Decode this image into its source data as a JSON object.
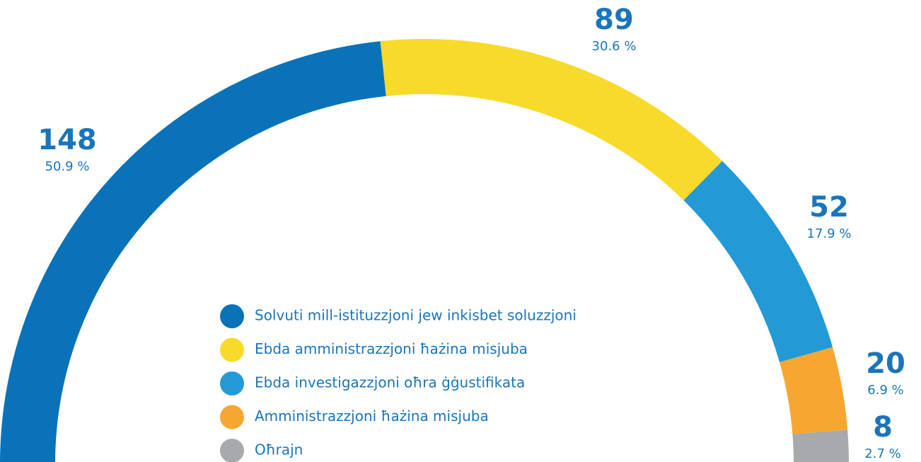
{
  "chart_data": {
    "type": "half-donut",
    "categories": [
      "Solvuti mill-istituzzjoni jew inkisbet soluzzjoni",
      "Ebda amministrazzjoni ħażina misjuba",
      "Ebda investigazzjoni oħra ġġustifikata",
      "Amministrazzjoni ħażina misjuba",
      "Oħrajn"
    ],
    "values": [
      148,
      89,
      52,
      20,
      8
    ],
    "percent_labels": [
      "50.9 %",
      "30.6 %",
      "17.9 %",
      "6.9 %",
      "2.7 %"
    ],
    "colors": [
      "#0a72b9",
      "#f8da2a",
      "#2399d6",
      "#f7a731",
      "#a7a9ac"
    ]
  }
}
